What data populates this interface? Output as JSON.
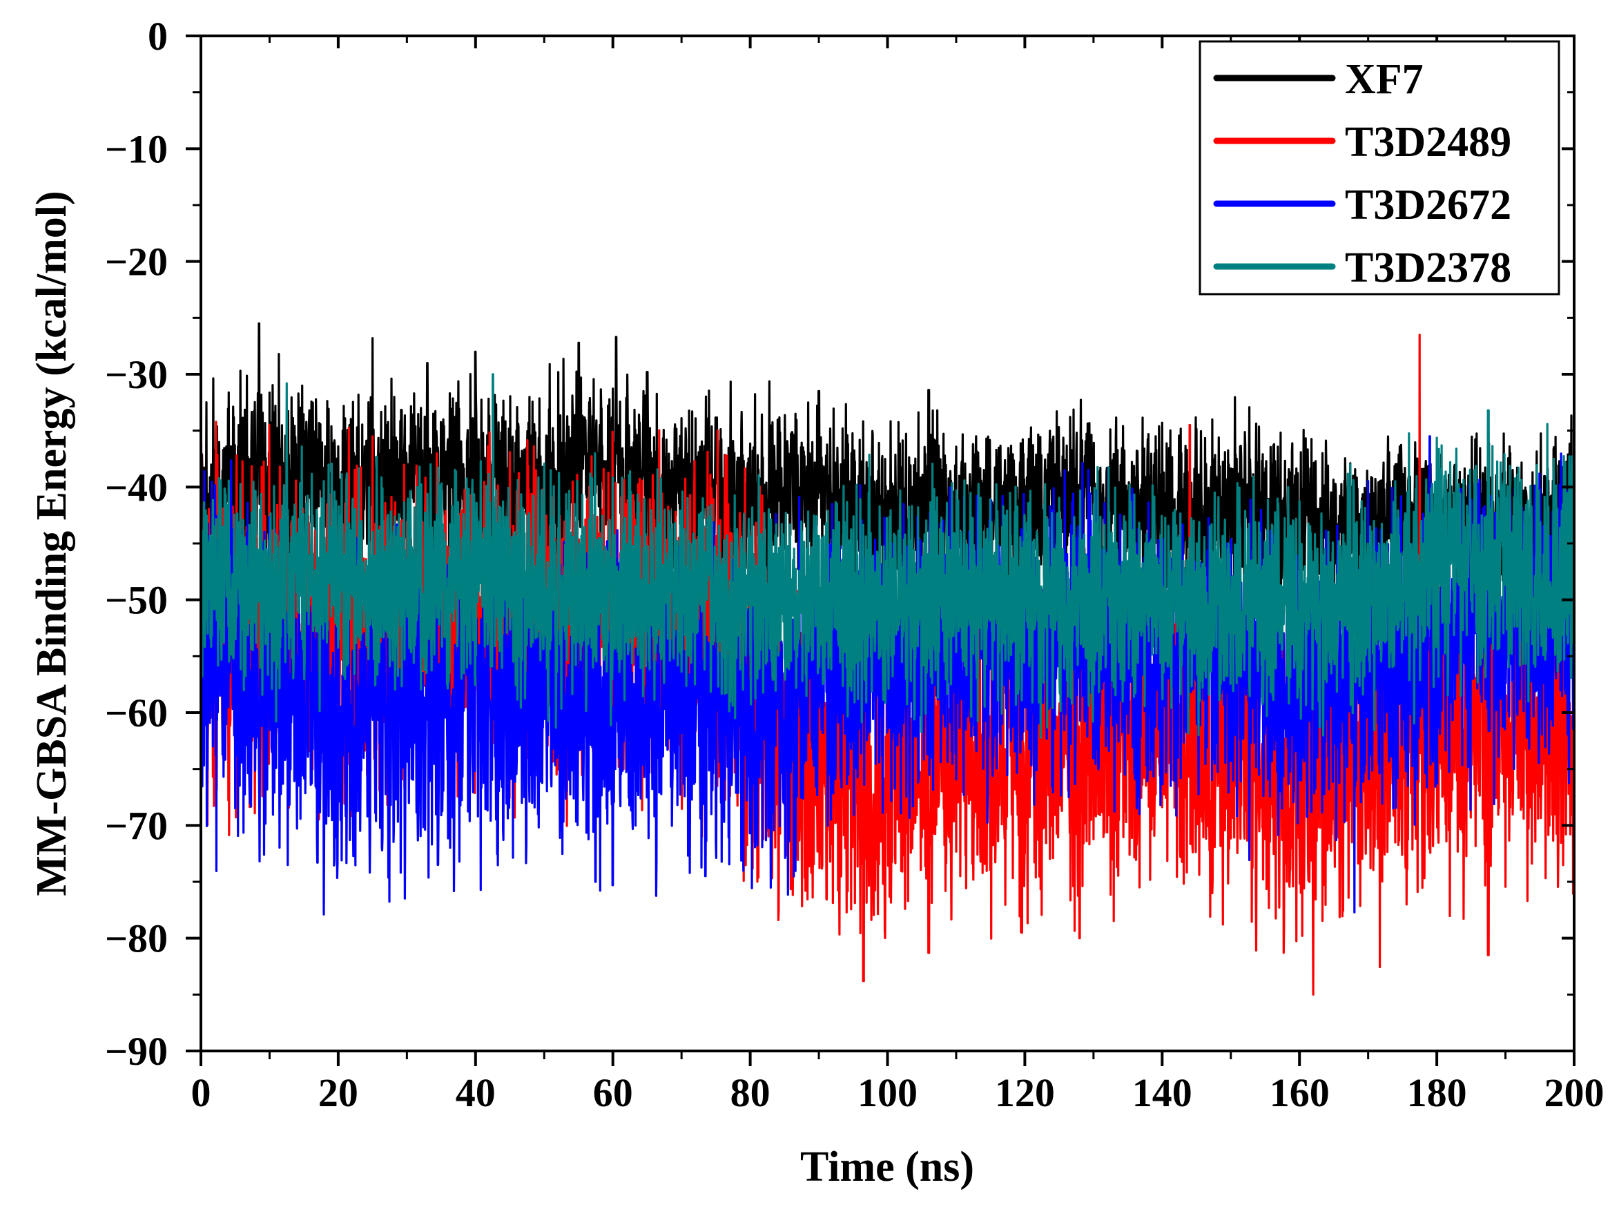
{
  "chart_data": {
    "type": "line",
    "title": "",
    "xlabel": "Time (ns)",
    "ylabel": "MM-GBSA Binding Energy (kcal/mol)",
    "xlim": [
      0,
      200
    ],
    "ylim": [
      -90,
      0
    ],
    "xticks": [
      0,
      20,
      40,
      60,
      80,
      100,
      120,
      140,
      160,
      180,
      200
    ],
    "yticks": [
      0,
      -10,
      -20,
      -30,
      -40,
      -50,
      -60,
      -70,
      -80,
      -90
    ],
    "xtick_labels": [
      "0",
      "20",
      "40",
      "60",
      "80",
      "100",
      "120",
      "140",
      "160",
      "180",
      "200"
    ],
    "ytick_labels": [
      "0",
      "−10",
      "−20",
      "−30",
      "−40",
      "−50",
      "−60",
      "−70",
      "−80",
      "−90"
    ],
    "grid": false,
    "legend_position": "top-right",
    "time_knots": [
      0,
      5,
      10,
      15,
      20,
      25,
      30,
      35,
      40,
      45,
      50,
      55,
      60,
      65,
      70,
      75,
      80,
      85,
      90,
      95,
      100,
      105,
      110,
      115,
      120,
      125,
      130,
      135,
      140,
      145,
      150,
      155,
      160,
      165,
      170,
      175,
      180,
      185,
      190,
      195,
      200
    ],
    "series": [
      {
        "name": "XF7",
        "color": "#000000",
        "mean": [
          -41,
          -40,
          -39,
          -39,
          -40,
          -39,
          -39,
          -39,
          -39,
          -40,
          -40,
          -38,
          -38,
          -40,
          -40,
          -41,
          -41,
          -41,
          -41,
          -42,
          -42,
          -42,
          -42,
          -42,
          -42,
          -41,
          -41,
          -42,
          -42,
          -42,
          -42,
          -42,
          -43,
          -43,
          -43,
          -43,
          -43,
          -43,
          -43,
          -43,
          -42
        ],
        "spread": [
          8,
          8,
          8,
          8,
          8,
          8,
          8,
          8,
          8,
          8,
          8,
          8,
          8,
          8,
          8,
          8,
          8,
          7,
          7,
          7,
          7,
          7,
          7,
          7,
          7,
          7,
          7,
          7,
          7,
          7,
          7,
          7,
          7,
          6,
          6,
          6,
          6,
          6,
          6,
          6,
          6
        ],
        "spikes": [
          [
            8.5,
            -25.5
          ],
          [
            25,
            -26.8
          ],
          [
            33,
            -29
          ],
          [
            40,
            -28
          ],
          [
            55,
            -27.2
          ],
          [
            60.5,
            -26.7
          ],
          [
            65,
            -29.8
          ],
          [
            90,
            -31.5
          ],
          [
            106,
            -31.4
          ]
        ]
      },
      {
        "name": "T3D2489",
        "color": "#ff0000",
        "mean": [
          -53,
          -53,
          -53,
          -53,
          -53,
          -53,
          -53,
          -53,
          -53,
          -53,
          -52,
          -52,
          -52,
          -52,
          -52,
          -52,
          -58,
          -63,
          -64,
          -66,
          -65,
          -64,
          -64,
          -64,
          -63,
          -63,
          -63,
          -63,
          -62,
          -62,
          -63,
          -64,
          -66,
          -65,
          -64,
          -64,
          -62,
          -62,
          -61,
          -61,
          -61
        ],
        "spread": [
          14,
          14,
          14,
          14,
          14,
          14,
          14,
          14,
          14,
          14,
          14,
          14,
          14,
          14,
          14,
          14,
          16,
          13,
          13,
          13,
          13,
          13,
          13,
          13,
          13,
          13,
          13,
          13,
          13,
          13,
          13,
          13,
          13,
          13,
          13,
          13,
          13,
          13,
          13,
          13,
          13
        ],
        "spikes": [
          [
            177.5,
            -26.5
          ],
          [
            25,
            -35.5
          ],
          [
            144,
            -34.5
          ],
          [
            162,
            -85
          ],
          [
            96.5,
            -83.8
          ],
          [
            106,
            -81.3
          ],
          [
            187.5,
            -81.5
          ],
          [
            128,
            -80
          ]
        ]
      },
      {
        "name": "T3D2672",
        "color": "#0000ff",
        "mean": [
          -55,
          -56,
          -58,
          -60,
          -61,
          -60,
          -60,
          -60,
          -59,
          -59,
          -58,
          -60,
          -60,
          -60,
          -59,
          -59,
          -60,
          -60,
          -56,
          -56,
          -55,
          -54,
          -53,
          -54,
          -53,
          -53,
          -54,
          -55,
          -55,
          -54,
          -55,
          -56,
          -57,
          -57,
          -55,
          -55,
          -53,
          -52,
          -51,
          -51,
          -51
        ],
        "spread": [
          13,
          14,
          14,
          13,
          13,
          13,
          13,
          13,
          13,
          13,
          13,
          13,
          13,
          13,
          13,
          13,
          13,
          13,
          13,
          12,
          12,
          12,
          12,
          12,
          12,
          12,
          12,
          12,
          12,
          12,
          12,
          12,
          13,
          13,
          12,
          12,
          12,
          12,
          12,
          12,
          12
        ],
        "spikes": [
          [
            57.5,
            -75
          ],
          [
            60,
            -75.3
          ],
          [
            73.5,
            -74.5
          ],
          [
            168,
            -77.7
          ],
          [
            17,
            -73.3
          ],
          [
            34.5,
            -73.5
          ],
          [
            179,
            -35.5
          ],
          [
            0,
            -36
          ]
        ]
      },
      {
        "name": "T3D2378",
        "color": "#008080",
        "mean": [
          -48,
          -48,
          -48,
          -48,
          -48,
          -48,
          -48,
          -48,
          -48,
          -48,
          -49,
          -49,
          -49,
          -49,
          -49,
          -49,
          -50,
          -50,
          -50,
          -50,
          -50,
          -50,
          -50,
          -50,
          -50,
          -50,
          -50,
          -50,
          -50,
          -50,
          -50,
          -50,
          -51,
          -51,
          -50,
          -48,
          -47,
          -47,
          -47,
          -48,
          -48
        ],
        "spread": [
          9,
          9,
          9,
          9,
          9,
          9,
          9,
          9,
          9,
          9,
          9,
          9,
          9,
          9,
          9,
          9,
          9,
          9,
          9,
          9,
          9,
          9,
          9,
          9,
          9,
          9,
          9,
          9,
          9,
          9,
          9,
          9,
          9,
          9,
          9,
          9,
          10,
          10,
          10,
          10,
          10
        ],
        "spikes": [
          [
            12.5,
            -30.8
          ],
          [
            42.5,
            -30
          ],
          [
            187.5,
            -33.2
          ]
        ]
      }
    ]
  }
}
